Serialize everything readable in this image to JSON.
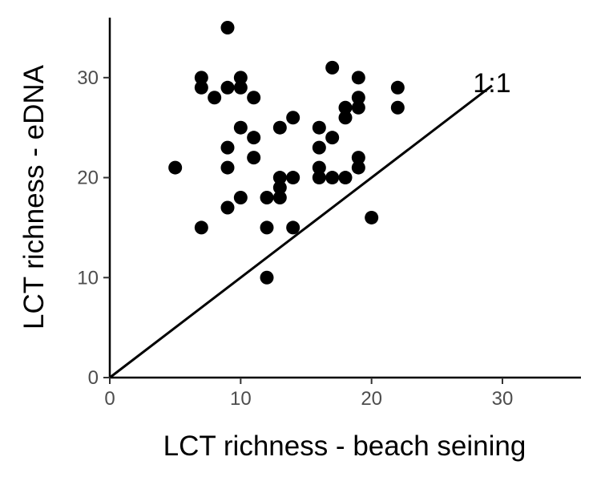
{
  "chart_data": {
    "type": "scatter",
    "title": "",
    "xlabel": "LCT richness - beach seining",
    "ylabel": "LCT richness - eDNA",
    "xlim": [
      0,
      36
    ],
    "ylim": [
      0,
      36
    ],
    "xticks": [
      0,
      10,
      20,
      30
    ],
    "yticks": [
      0,
      10,
      20,
      30
    ],
    "grid": false,
    "legend": "none",
    "point_color": "#000000",
    "reference_line": {
      "label": "1:1",
      "from": [
        0,
        0
      ],
      "to": [
        29.2,
        29.2
      ]
    },
    "series": [
      {
        "points": [
          [
            5,
            21
          ],
          [
            7,
            30
          ],
          [
            7,
            29
          ],
          [
            7,
            15
          ],
          [
            8,
            28
          ],
          [
            9,
            35
          ],
          [
            9,
            29
          ],
          [
            9,
            23
          ],
          [
            9,
            21
          ],
          [
            9,
            17
          ],
          [
            10,
            30
          ],
          [
            10,
            29
          ],
          [
            10,
            25
          ],
          [
            10,
            18
          ],
          [
            11,
            28
          ],
          [
            11,
            24
          ],
          [
            11,
            22
          ],
          [
            12,
            18
          ],
          [
            12,
            15
          ],
          [
            12,
            10
          ],
          [
            13,
            25
          ],
          [
            13,
            20
          ],
          [
            13,
            19
          ],
          [
            13,
            18
          ],
          [
            14,
            26
          ],
          [
            14,
            20
          ],
          [
            14,
            15
          ],
          [
            16,
            25
          ],
          [
            16,
            23
          ],
          [
            16,
            21
          ],
          [
            16,
            20
          ],
          [
            17,
            31
          ],
          [
            17,
            24
          ],
          [
            17,
            20
          ],
          [
            18,
            27
          ],
          [
            18,
            26
          ],
          [
            18,
            20
          ],
          [
            19,
            30
          ],
          [
            19,
            28
          ],
          [
            19,
            27
          ],
          [
            19,
            22
          ],
          [
            19,
            21
          ],
          [
            20,
            16
          ],
          [
            22,
            29
          ],
          [
            22,
            27
          ]
        ]
      }
    ]
  }
}
